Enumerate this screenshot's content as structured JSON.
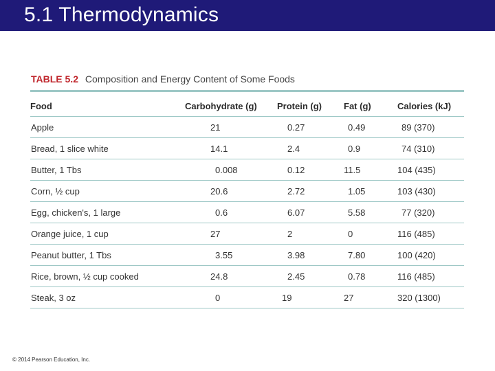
{
  "slide": {
    "title": "5.1 Thermodynamics",
    "footer": "© 2014 Pearson Education, Inc."
  },
  "table": {
    "label": "TABLE 5.2",
    "caption": "Composition and Energy Content of Some Foods",
    "columns": [
      "Food",
      "Carbohydrate (g)",
      "Protein (g)",
      "Fat (g)",
      "Calories (kJ)"
    ],
    "rows": [
      [
        "Apple",
        "21",
        "0.27",
        "0.49",
        "89 (370)"
      ],
      [
        "Bread, 1 slice white",
        "14.1",
        "2.4",
        "0.9",
        "74 (310)"
      ],
      [
        "Butter, 1 Tbs",
        "0.008",
        "0.12",
        "11.5",
        "104 (435)"
      ],
      [
        "Corn, ½ cup",
        "20.6",
        "2.72",
        "1.05",
        "103 (430)"
      ],
      [
        "Egg, chicken's, 1 large",
        "0.6",
        "6.07",
        "5.58",
        "77 (320)"
      ],
      [
        "Orange juice, 1 cup",
        "27",
        "2",
        "0",
        "116 (485)"
      ],
      [
        "Peanut butter, 1 Tbs",
        "3.55",
        "3.98",
        "7.80",
        "100 (420)"
      ],
      [
        "Rice, brown, ½ cup cooked",
        "24.8",
        "2.45",
        "0.78",
        "116 (485)"
      ],
      [
        "Steak, 3 oz",
        "0",
        "19",
        "27",
        "320 (1300)"
      ]
    ]
  }
}
